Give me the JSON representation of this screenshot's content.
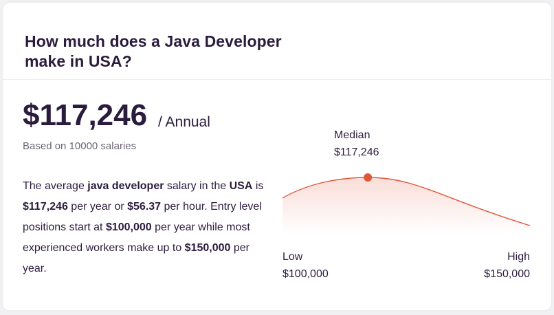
{
  "card": {
    "title": "How much does a Java Developer make in USA?",
    "salary": "$117,246",
    "period": "/ Annual",
    "based_on": "Based on 10000 salaries"
  },
  "summary": {
    "p1": "The average ",
    "b1": "java developer",
    "p2": " salary in the ",
    "b2": "USA",
    "p3": " is ",
    "b3": "$117,246",
    "p4": " per year or ",
    "b4": "$56.37",
    "p5": " per hour. Entry level positions start at ",
    "b5": "$100,000",
    "p6": " per year while most experienced workers make up to ",
    "b6": "$150,000",
    "p7": " per year."
  },
  "chart": {
    "median_label": "Median",
    "median_value": "$117,246",
    "low_label": "Low",
    "low_value": "$100,000",
    "high_label": "High",
    "high_value": "$150,000",
    "accent_color": "#e2553a"
  },
  "chart_data": {
    "type": "area",
    "x": [
      100000,
      150000
    ],
    "xlim": [
      100000,
      150000
    ],
    "median": 117246,
    "min": 100000,
    "max": 150000,
    "title": "",
    "xlabel": "",
    "ylabel": ""
  }
}
